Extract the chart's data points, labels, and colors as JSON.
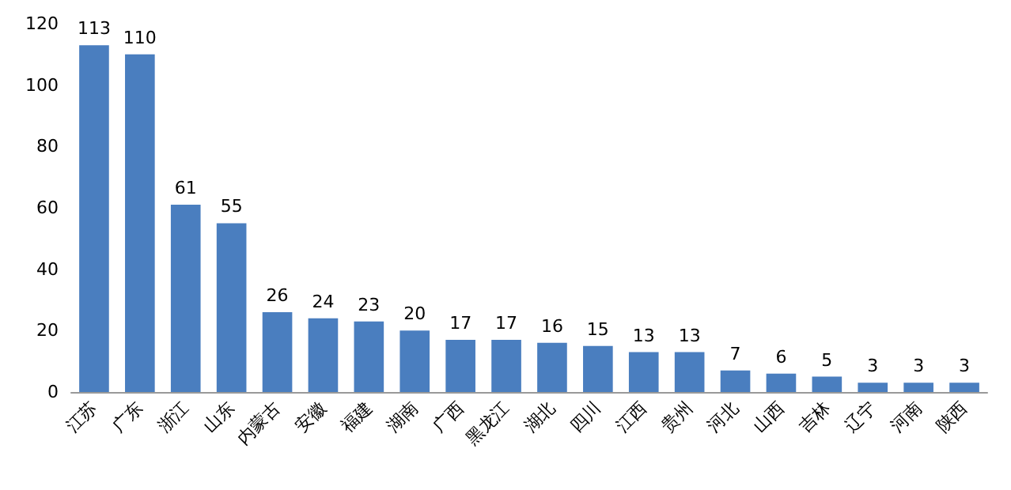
{
  "chart_data": {
    "type": "bar",
    "categories": [
      "江苏",
      "广东",
      "浙江",
      "山东",
      "内蒙古",
      "安徽",
      "福建",
      "湖南",
      "广西",
      "黑龙江",
      "湖北",
      "四川",
      "江西",
      "贵州",
      "河北",
      "山西",
      "吉林",
      "辽宁",
      "河南",
      "陕西"
    ],
    "values": [
      113,
      110,
      61,
      55,
      26,
      24,
      23,
      20,
      17,
      17,
      16,
      15,
      13,
      13,
      7,
      6,
      5,
      3,
      3,
      3
    ],
    "color": "#4a7ebf",
    "ylim": [
      0,
      120
    ],
    "yticks": [
      0,
      20,
      40,
      60,
      80,
      100,
      120
    ],
    "grid": false,
    "data_labels": true
  }
}
